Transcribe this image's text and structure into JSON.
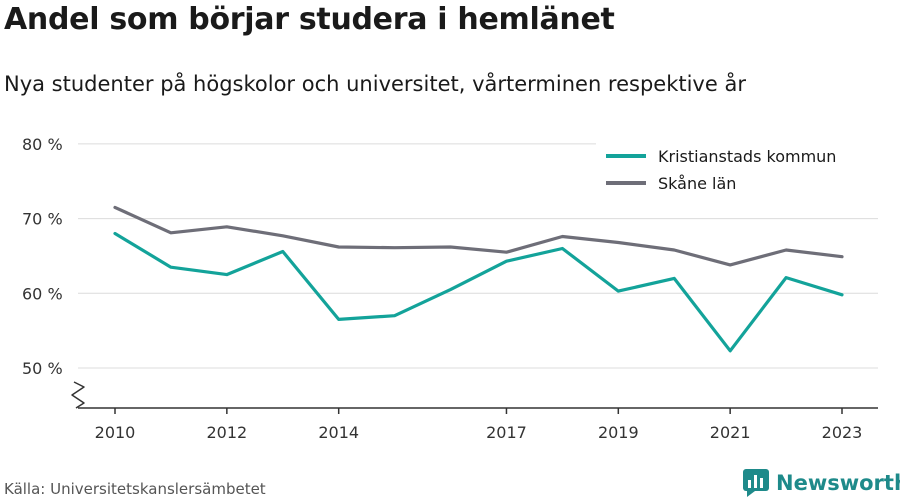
{
  "header": {
    "title": "Andel som börjar studera i hemlänet",
    "subtitle": "Nya studenter på högskolor och universitet, vårterminen respektive år"
  },
  "footer": {
    "source": "Källa: Universitetskanslersämbetet",
    "brand": "Newsworthy"
  },
  "colors": {
    "kristianstad": "#13a39a",
    "skane": "#6e6e78",
    "grid": "#dcdcdc",
    "axis": "#333333",
    "brand": "#1e8a8a"
  },
  "chart_data": {
    "type": "line",
    "title": "",
    "xlabel": "",
    "ylabel": "",
    "x": [
      2010,
      2011,
      2012,
      2013,
      2014,
      2015,
      2016,
      2017,
      2018,
      2019,
      2020,
      2021,
      2022,
      2023
    ],
    "xticks": [
      2010,
      2012,
      2014,
      2017,
      2019,
      2021,
      2023
    ],
    "yticks": [
      50,
      60,
      70,
      80
    ],
    "ytick_labels": [
      "50 %",
      "60 %",
      "70 %",
      "80 %"
    ],
    "ylim": [
      45,
      80
    ],
    "axis_break": true,
    "grid": true,
    "legend_position": "top-right",
    "series": [
      {
        "name": "Kristianstads kommun",
        "color_key": "kristianstad",
        "values": [
          68.0,
          63.5,
          62.5,
          65.6,
          56.5,
          57.0,
          60.5,
          64.3,
          66.0,
          60.3,
          62.0,
          52.3,
          62.1,
          59.8
        ]
      },
      {
        "name": "Skåne län",
        "color_key": "skane",
        "values": [
          71.5,
          68.1,
          68.9,
          67.7,
          66.2,
          66.1,
          66.2,
          65.5,
          67.6,
          66.8,
          65.8,
          63.8,
          65.8,
          64.9
        ]
      }
    ]
  }
}
